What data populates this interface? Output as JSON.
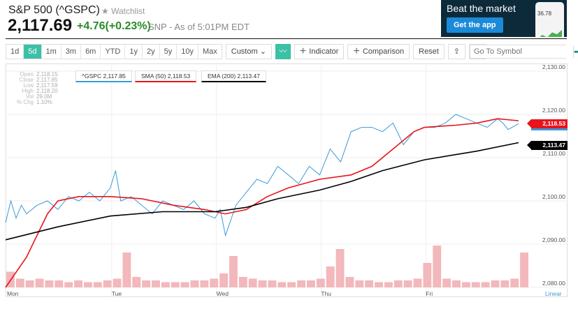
{
  "header": {
    "title": "S&P 500 (^GSPC)",
    "watchlist": "★ Watchlist",
    "price": "2,117.69",
    "change": "+4.76(+0.23%)",
    "source": "SNP - As of 5:01PM EDT"
  },
  "ad": {
    "headline": "Beat the market",
    "button": "Get the app",
    "phone_value": "36.78"
  },
  "toolbar": {
    "ranges": [
      "1d",
      "5d",
      "1m",
      "3m",
      "6m",
      "YTD",
      "1y",
      "2y",
      "5y",
      "10y",
      "Max"
    ],
    "active_range": "5d",
    "custom": "Custom ⌄",
    "indicator": "Indicator",
    "comparison": "Comparison",
    "reset": "Reset",
    "symbol_placeholder": "Go To Symbol"
  },
  "ohlc": [
    {
      "k": "Open",
      "v": "2,118.15"
    },
    {
      "k": "Close",
      "v": "2,117.85"
    },
    {
      "k": "Low",
      "v": "2,117.59"
    },
    {
      "k": "High",
      "v": "2,118.20"
    },
    {
      "k": "Vol",
      "v": "29.0M"
    },
    {
      "k": "% Chg",
      "v": "1.10%"
    }
  ],
  "legend": {
    "gspc": "^GSPC 2,117.85",
    "sma": "SMA (50) 2,118.53",
    "ema": "EMA (200) 2,113.47"
  },
  "tags": {
    "sma": "2,118.53",
    "ema": "2,113.47"
  },
  "colors": {
    "gspc": "#3a9ad9",
    "sma": "#e8141b",
    "ema": "#000000",
    "volume": "#f2b8bb"
  },
  "chart_data": {
    "type": "line",
    "x_ticks": [
      "Mon",
      "Tue",
      "Wed",
      "Thu",
      "Fri"
    ],
    "y_ticks": [
      "2,080.00",
      "2,090.00",
      "2,100.00",
      "2,110.00",
      "2,120.00",
      "2,130.00"
    ],
    "ylim": [
      2080,
      2130
    ],
    "xlim": [
      0,
      5
    ],
    "scale": "Linear",
    "series": [
      {
        "name": "^GSPC",
        "x": [
          0,
          0.05,
          0.1,
          0.15,
          0.2,
          0.3,
          0.4,
          0.5,
          0.6,
          0.7,
          0.8,
          0.9,
          1.0,
          1.05,
          1.1,
          1.2,
          1.3,
          1.4,
          1.5,
          1.6,
          1.7,
          1.8,
          1.9,
          2.0,
          2.05,
          2.1,
          2.2,
          2.3,
          2.4,
          2.5,
          2.6,
          2.7,
          2.8,
          2.9,
          3.0,
          3.1,
          3.2,
          3.3,
          3.4,
          3.5,
          3.6,
          3.7,
          3.8,
          3.9,
          4.0,
          4.1,
          4.2,
          4.3,
          4.4,
          4.5,
          4.6,
          4.7,
          4.75,
          4.8,
          4.9
        ],
        "values": [
          2095,
          2100,
          2096,
          2099,
          2097,
          2099,
          2100,
          2098,
          2101,
          2100,
          2102,
          2100,
          2103,
          2107,
          2100,
          2101,
          2099,
          2097,
          2100,
          2099,
          2098,
          2100,
          2097,
          2096,
          2098,
          2092,
          2099,
          2102,
          2105,
          2104,
          2108,
          2106,
          2104,
          2108,
          2106,
          2112,
          2109,
          2116,
          2117,
          2117,
          2116,
          2118,
          2113,
          2116,
          2117,
          2117,
          2118,
          2120,
          2119,
          2118,
          2117,
          2119,
          2118,
          2116.5,
          2117.85
        ]
      },
      {
        "name": "SMA (50)",
        "x": [
          0,
          0.2,
          0.4,
          0.5,
          0.7,
          1.0,
          1.3,
          1.6,
          1.9,
          2.0,
          2.1,
          2.3,
          2.5,
          2.7,
          3.0,
          3.3,
          3.5,
          3.7,
          3.9,
          4.0,
          4.3,
          4.5,
          4.7,
          4.9
        ],
        "values": [
          2080,
          2087,
          2097,
          2100,
          2101,
          2101,
          2100.5,
          2099,
          2098,
          2097.5,
          2097,
          2098,
          2101,
          2103,
          2105,
          2106,
          2108,
          2112,
          2116,
          2117,
          2117.5,
          2118,
          2119,
          2118.53
        ]
      },
      {
        "name": "EMA (200)",
        "x": [
          0,
          0.5,
          1.0,
          1.5,
          2.0,
          2.3,
          2.6,
          3.0,
          3.3,
          3.6,
          4.0,
          4.5,
          4.9
        ],
        "values": [
          2091,
          2094,
          2096.5,
          2097.5,
          2097.5,
          2098.5,
          2100.5,
          2102.5,
          2104.5,
          2107,
          2109.5,
          2111.5,
          2113.47
        ]
      }
    ],
    "volume": [
      9,
      5,
      4,
      5,
      4,
      4,
      3,
      4,
      3,
      3,
      4,
      5,
      20,
      6,
      4,
      4,
      3,
      3,
      3,
      4,
      4,
      5,
      8,
      18,
      6,
      5,
      4,
      4,
      3,
      3,
      4,
      4,
      5,
      12,
      22,
      6,
      4,
      4,
      3,
      3,
      4,
      4,
      5,
      14,
      24,
      5,
      4,
      3,
      3,
      3,
      4,
      4,
      5,
      20
    ]
  }
}
